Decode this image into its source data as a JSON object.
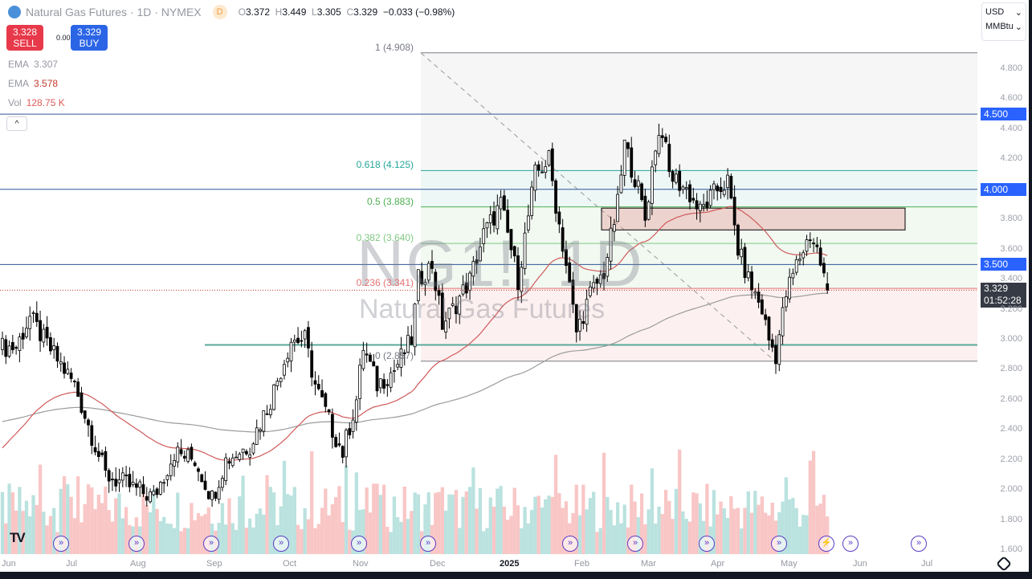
{
  "header": {
    "symbol_name": "Natural Gas Futures · 1D · NYMEX",
    "interval_badge": "D",
    "ohlc": {
      "o_label": "O",
      "o": "3.372",
      "h_label": "H",
      "h": "3.449",
      "l_label": "L",
      "l": "3.305",
      "c_label": "C",
      "c": "3.329",
      "change": "−0.033 (−0.98%)"
    }
  },
  "trade": {
    "sell_price": "3.328",
    "sell_label": "SELL",
    "spread": "0.001",
    "buy_price": "3.329",
    "buy_label": "BUY"
  },
  "indicators": [
    {
      "name": "EMA",
      "value": "3.307",
      "color": "#787b86"
    },
    {
      "name": "EMA",
      "value": "3.578",
      "color": "#c0392b"
    },
    {
      "name": "Vol",
      "value": "128.75 K",
      "color": "#e05a5a"
    }
  ],
  "collapse_label": "^",
  "watermark": {
    "line1": "NG1!, 1D",
    "line2": "Natural Gas Futures"
  },
  "fib": [
    {
      "label": "1 (4.908)",
      "level": 4.908,
      "color": "#787b86"
    },
    {
      "label": "0.618 (4.125)",
      "level": 4.125,
      "color": "#26a69a"
    },
    {
      "label": "0.5 (3.883)",
      "level": 3.883,
      "color": "#4caf50"
    },
    {
      "label": "0.382 (3.640)",
      "level": 3.64,
      "color": "#81c784"
    },
    {
      "label": "0.236 (3.341)",
      "level": 3.341,
      "color": "#e57373"
    },
    {
      "label": "0 (2.857)",
      "level": 2.857,
      "color": "#787b86"
    }
  ],
  "price_axis": {
    "ticks": [
      "4.800",
      "4.600",
      "4.400",
      "4.200",
      "3.800",
      "3.600",
      "3.400",
      "3.200",
      "3.000",
      "2.800",
      "2.600",
      "2.400",
      "2.200",
      "2.000",
      "1.800",
      "1.600"
    ],
    "levels": [
      {
        "label": "4.500",
        "price": 4.5
      },
      {
        "label": "4.000",
        "price": 4.0
      },
      {
        "label": "3.500",
        "price": 3.5
      }
    ],
    "current_price": "3.329",
    "countdown": "01:52:28",
    "currency": "USD",
    "unit": "MMBtu",
    "support_price": 2.965,
    "zone": {
      "top": 3.875,
      "bottom": 3.73
    }
  },
  "time_axis": [
    "Jun",
    "Jul",
    "Aug",
    "Sep",
    "Oct",
    "Nov",
    "Dec",
    "2025",
    "Feb",
    "Mar",
    "Apr",
    "May",
    "Jun",
    "Jul"
  ],
  "chart_data": {
    "type": "candlestick",
    "bars": 241,
    "last_bar": {
      "open": 3.372,
      "high": 3.449,
      "low": 3.305,
      "close": 3.329
    },
    "close_keypoints": [
      [
        0,
        2.95
      ],
      [
        4,
        2.95
      ],
      [
        8,
        3.15
      ],
      [
        12,
        3.0
      ],
      [
        21,
        2.7
      ],
      [
        30,
        2.1
      ],
      [
        44,
        1.95
      ],
      [
        50,
        2.25
      ],
      [
        56,
        2.2
      ],
      [
        61,
        1.95
      ],
      [
        65,
        2.2
      ],
      [
        72,
        2.3
      ],
      [
        78,
        2.6
      ],
      [
        84,
        3.0
      ],
      [
        88,
        3.0
      ],
      [
        91,
        2.7
      ],
      [
        96,
        2.4
      ],
      [
        99,
        2.25
      ],
      [
        103,
        2.6
      ],
      [
        105,
        2.95
      ],
      [
        109,
        2.7
      ],
      [
        114,
        2.8
      ],
      [
        119,
        3.0
      ],
      [
        121,
        3.4
      ],
      [
        125,
        3.5
      ],
      [
        128,
        3.1
      ],
      [
        131,
        3.2
      ],
      [
        136,
        3.4
      ],
      [
        140,
        3.7
      ],
      [
        145,
        3.9
      ],
      [
        150,
        3.4
      ],
      [
        155,
        4.1
      ],
      [
        159,
        4.2
      ],
      [
        161,
        3.9
      ],
      [
        164,
        3.5
      ],
      [
        167,
        3.05
      ],
      [
        171,
        3.3
      ],
      [
        175,
        3.45
      ],
      [
        179,
        3.9
      ],
      [
        181,
        4.3
      ],
      [
        185,
        4.0
      ],
      [
        187,
        3.8
      ],
      [
        190,
        4.3
      ],
      [
        192,
        4.4
      ],
      [
        194,
        4.1
      ],
      [
        199,
        4.0
      ],
      [
        203,
        3.85
      ],
      [
        208,
        4.0
      ],
      [
        211,
        4.05
      ],
      [
        214,
        3.6
      ],
      [
        217,
        3.4
      ],
      [
        221,
        3.2
      ],
      [
        223,
        3.0
      ],
      [
        225,
        2.9
      ],
      [
        228,
        3.3
      ],
      [
        231,
        3.5
      ],
      [
        235,
        3.7
      ],
      [
        237,
        3.6
      ],
      [
        240,
        3.33
      ]
    ],
    "ema_fast_last": 3.578,
    "ema_slow_last": 3.307
  },
  "colors": {
    "up": "#ffffff",
    "down": "#000000",
    "level_line": "#2f5597",
    "ema_fast": "#d05a5a",
    "ema_slow": "#9b9b9b"
  }
}
